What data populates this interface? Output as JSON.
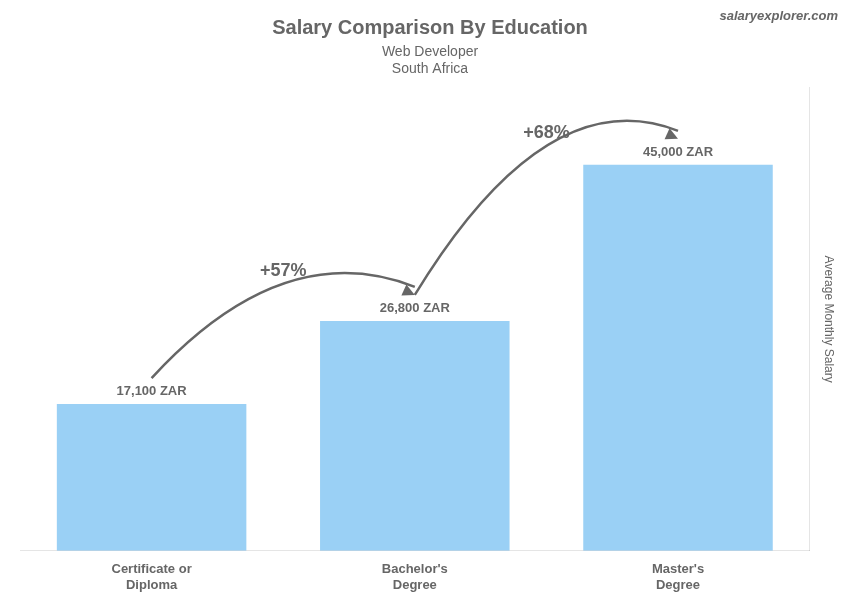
{
  "chart_data": {
    "type": "bar",
    "title": "Salary Comparison By Education",
    "subtitle": [
      "Web Developer",
      "South Africa"
    ],
    "categories": [
      "Certificate or\nDiploma",
      "Bachelor's\nDegree",
      "Master's\nDegree"
    ],
    "values": [
      17100,
      26800,
      45000
    ],
    "value_labels": [
      "17,100 ZAR",
      "26,800 ZAR",
      "45,000 ZAR"
    ],
    "data_labels": true,
    "annotations": [
      "+57%",
      "+68%",
      "salaryexplorer.com"
    ],
    "ylabel": "Average Monthly Salary",
    "ylim": [
      0,
      54000
    ],
    "tick_labels": "x",
    "grid": false
  }
}
